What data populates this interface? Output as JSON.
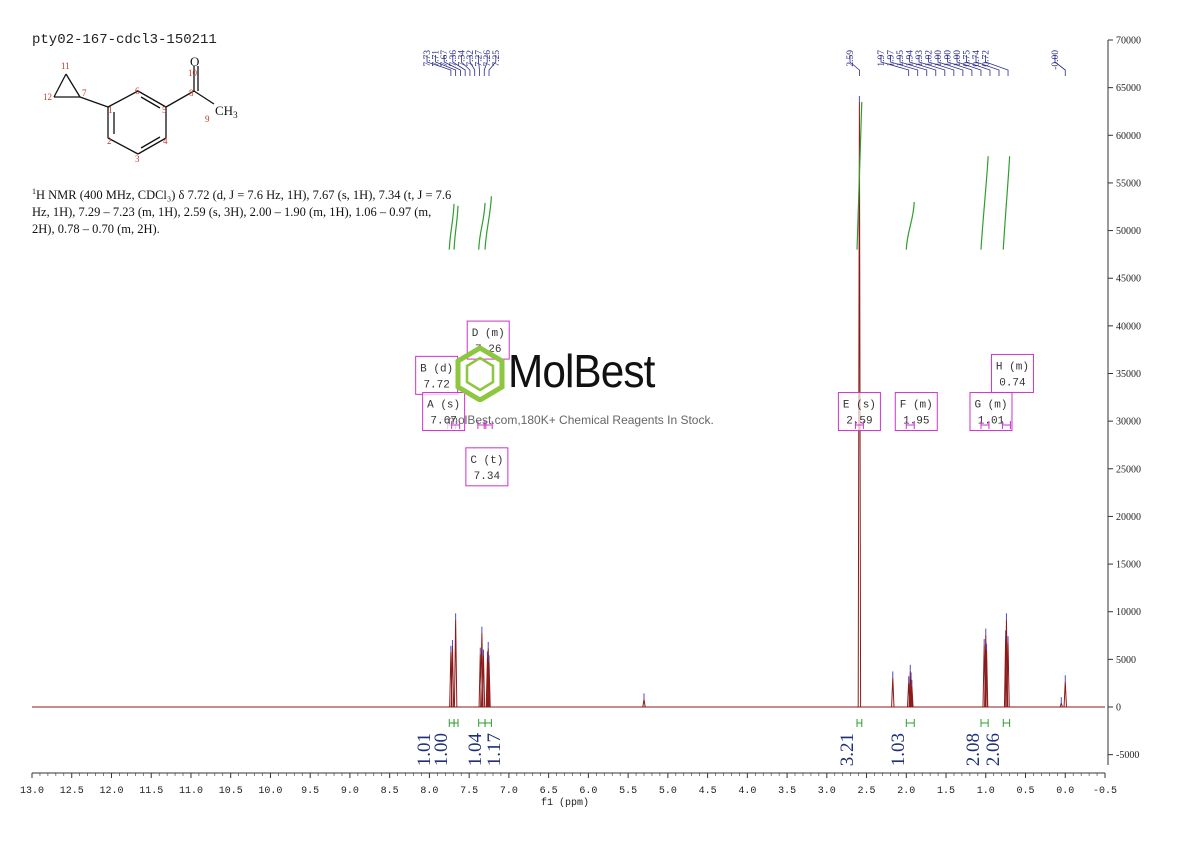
{
  "sample_name": "pty02-167-cdcl3-150211",
  "molecule": {
    "atom_labels": [
      "1",
      "2",
      "3",
      "4",
      "5",
      "6",
      "7",
      "8",
      "9",
      "10",
      "11",
      "12"
    ],
    "oxygen": "O",
    "methyl": "CH",
    "methyl_sub": "3"
  },
  "description": {
    "sup": "1",
    "text": "H NMR (400 MHz, CDCl₃) δ 7.72 (d, J = 7.6 Hz, 1H), 7.67 (s, 1H), 7.34 (t, J = 7.6 Hz, 1H), 7.29 – 7.23 (m, 1H), 2.59 (s, 3H), 2.00 – 1.90 (m, 1H), 1.06 – 0.97 (m, 2H), 0.78 – 0.70 (m, 2H)."
  },
  "watermark": {
    "name": "MolBest",
    "subtitle": "molBest.com,180K+ Chemical Reagents In Stock."
  },
  "chart_data": {
    "type": "line",
    "xlabel": "f1 (ppm)",
    "xlim": [
      13.0,
      -0.5
    ],
    "ylim": [
      -7000,
      71000
    ],
    "x_ticks": [
      "13.0",
      "12.5",
      "12.0",
      "11.5",
      "11.0",
      "10.5",
      "10.0",
      "9.5",
      "9.0",
      "8.5",
      "8.0",
      "7.5",
      "7.0",
      "6.5",
      "6.0",
      "5.5",
      "5.0",
      "4.5",
      "4.0",
      "3.5",
      "3.0",
      "2.5",
      "2.0",
      "1.5",
      "1.0",
      "0.5",
      "0.0",
      "-0.5"
    ],
    "y_ticks": [
      "70000",
      "65000",
      "60000",
      "55000",
      "50000",
      "45000",
      "40000",
      "35000",
      "30000",
      "25000",
      "20000",
      "15000",
      "10000",
      "5000",
      "0",
      "-5000"
    ],
    "colors": {
      "spectrum": "#8b1a1a",
      "integral": "#2e9e2e",
      "peak_label": "#2a2a8a",
      "box": "#cc33cc",
      "integral_value": "#1f2f7a"
    },
    "peak_labels": {
      "group_left": [
        "7.73",
        "7.71",
        "7.67",
        "7.36",
        "7.34",
        "7.32",
        "7.27",
        "7.26",
        "7.25"
      ],
      "group_mid": [
        "2.59"
      ],
      "group_right": [
        "1.97",
        "1.97",
        "1.95",
        "1.94",
        "1.93",
        "1.02",
        "1.00",
        "1.00",
        "1.00",
        "0.75",
        "0.74",
        "0.72"
      ],
      "group_zero": [
        "-0.00"
      ]
    },
    "peaks": [
      {
        "ppm": 7.73,
        "height": 5800
      },
      {
        "ppm": 7.71,
        "height": 6400
      },
      {
        "ppm": 7.67,
        "height": 9200
      },
      {
        "ppm": 7.36,
        "height": 5600
      },
      {
        "ppm": 7.34,
        "height": 7800
      },
      {
        "ppm": 7.32,
        "height": 5400
      },
      {
        "ppm": 7.27,
        "height": 5200
      },
      {
        "ppm": 7.26,
        "height": 6200
      },
      {
        "ppm": 7.25,
        "height": 4800
      },
      {
        "ppm": 5.3,
        "height": 800
      },
      {
        "ppm": 2.59,
        "height": 63500
      },
      {
        "ppm": 2.17,
        "height": 3100
      },
      {
        "ppm": 1.97,
        "height": 2600
      },
      {
        "ppm": 1.95,
        "height": 3800
      },
      {
        "ppm": 1.94,
        "height": 3000
      },
      {
        "ppm": 1.93,
        "height": 2200
      },
      {
        "ppm": 1.02,
        "height": 6500
      },
      {
        "ppm": 1.0,
        "height": 7600
      },
      {
        "ppm": 0.99,
        "height": 6000
      },
      {
        "ppm": 0.75,
        "height": 7400
      },
      {
        "ppm": 0.74,
        "height": 9200
      },
      {
        "ppm": 0.72,
        "height": 6800
      },
      {
        "ppm": 0.0,
        "height": 2700
      },
      {
        "ppm": 0.05,
        "height": 400
      }
    ],
    "integrals": [
      {
        "from": 7.75,
        "to": 7.69,
        "value": "1.01",
        "curve_bottom": 48000,
        "curve_top": 52800
      },
      {
        "from": 7.69,
        "to": 7.64,
        "value": "1.00",
        "curve_bottom": 48000,
        "curve_top": 52600
      },
      {
        "from": 7.38,
        "to": 7.3,
        "value": "1.04",
        "curve_bottom": 48000,
        "curve_top": 52900
      },
      {
        "from": 7.3,
        "to": 7.22,
        "value": "1.17",
        "curve_bottom": 48000,
        "curve_top": 53600
      },
      {
        "from": 2.62,
        "to": 2.56,
        "value": "3.21",
        "curve_bottom": 48000,
        "curve_top": 63500
      },
      {
        "from": 2.0,
        "to": 1.9,
        "value": "1.03",
        "curve_bottom": 48000,
        "curve_top": 53000
      },
      {
        "from": 1.06,
        "to": 0.97,
        "value": "2.08",
        "curve_bottom": 48000,
        "curve_top": 57800
      },
      {
        "from": 0.78,
        "to": 0.7,
        "value": "2.06",
        "curve_bottom": 48000,
        "curve_top": 57800
      }
    ],
    "multiplets": [
      {
        "letter": "D (m)",
        "shift": "7.26",
        "anchor_ppm": 7.26,
        "box_y": 40500
      },
      {
        "letter": "B (d)",
        "shift": "7.72",
        "anchor_ppm": 7.72,
        "box_y": 36800
      },
      {
        "letter": "A (s)",
        "shift": "7.67",
        "anchor_ppm": 7.67,
        "box_y": 33000
      },
      {
        "letter": "C (t)",
        "shift": "7.34",
        "anchor_ppm": 7.34,
        "box_y": 27200
      },
      {
        "letter": "E (s)",
        "shift": "2.59",
        "anchor_ppm": 2.59,
        "box_y": 33000
      },
      {
        "letter": "F (m)",
        "shift": "1.95",
        "anchor_ppm": 1.95,
        "box_y": 33000
      },
      {
        "letter": "G (m)",
        "shift": "1.01",
        "anchor_ppm": 1.01,
        "box_y": 33000
      },
      {
        "letter": "H (m)",
        "shift": "0.74",
        "anchor_ppm": 0.74,
        "box_y": 37000
      }
    ]
  }
}
